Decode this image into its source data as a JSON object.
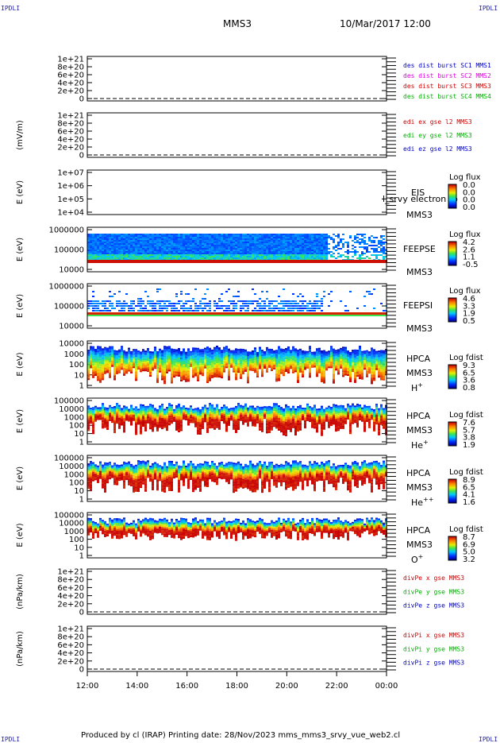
{
  "header": {
    "corner_tag": "IPDLI",
    "spacecraft": "MMS3",
    "datetime": "10/Mar/2017 12:00"
  },
  "footer": {
    "text": "Produced by cl (IRAP)   Printing date: 28/Nov/2023   mms_mms3_srvy_vue_web2.cl"
  },
  "colors": {
    "blue": "#0000c8",
    "magenta": "#e000e0",
    "red": "#d00000",
    "green": "#00b000",
    "dark_blue": "#000096"
  },
  "chart_data": [
    {
      "type": "line",
      "ylabel": "",
      "yticks": [
        "1e+21",
        "8e+20",
        "6e+20",
        "4e+20",
        "2e+20",
        "0"
      ],
      "legend": [
        {
          "text": "des dist burst SC1 MMS1",
          "color": "#0000c8"
        },
        {
          "text": "des dist burst SC2 MMS2",
          "color": "#e000e0"
        },
        {
          "text": "des dist burst SC3 MMS3",
          "color": "#d00000"
        },
        {
          "text": "des dist burst SC4 MMS4",
          "color": "#00b000"
        }
      ]
    },
    {
      "type": "line",
      "ylabel": "(mV/m)",
      "yticks": [
        "1e+21",
        "8e+20",
        "6e+20",
        "4e+20",
        "2e+20",
        "0"
      ],
      "legend": [
        {
          "text": "edi ex gse l2 MMS3",
          "color": "#d00000"
        },
        {
          "text": "edi ey gse l2 MMS3",
          "color": "#00b000"
        },
        {
          "text": "edi ez gse l2 MMS3",
          "color": "#0000c8"
        }
      ]
    },
    {
      "type": "heatmap",
      "ylabel": "E (eV)",
      "yticks": [
        "1e+07",
        "1e+06",
        "1e+05",
        "1e+04"
      ],
      "instrument": "EIS",
      "species": "MMS3",
      "overlay_text": "l_srvy electron to",
      "colorbar_title": "Log flux",
      "colorbar_ticks": [
        "0.0",
        "0.0",
        "0.0",
        "0.0"
      ]
    },
    {
      "type": "heatmap",
      "ylabel": "E (eV)",
      "yticks": [
        "1000000",
        "100000",
        "10000"
      ],
      "instrument": "FEEPSE",
      "species": "MMS3",
      "colorbar_title": "Log flux",
      "colorbar_ticks": [
        "4.2",
        "2.6",
        "1.1",
        "-0.5"
      ]
    },
    {
      "type": "heatmap",
      "ylabel": "E (eV)",
      "yticks": [
        "1000000",
        "100000",
        "10000"
      ],
      "instrument": "FEEPSI",
      "species": "MMS3",
      "colorbar_title": "Log flux",
      "colorbar_ticks": [
        "4.6",
        "3.3",
        "1.9",
        "0.5"
      ]
    },
    {
      "type": "heatmap",
      "ylabel": "E (eV)",
      "yticks": [
        "10000",
        "1000",
        "100",
        "10",
        "1"
      ],
      "instrument": "HPCA",
      "species": "MMS3",
      "ion": "H",
      "ion_charge": "+",
      "colorbar_title": "Log fdist",
      "colorbar_ticks": [
        "9.3",
        "6.5",
        "3.6",
        "0.8"
      ]
    },
    {
      "type": "heatmap",
      "ylabel": "E (eV)",
      "yticks": [
        "100000",
        "10000",
        "1000",
        "100",
        "10",
        "1"
      ],
      "instrument": "HPCA",
      "species": "MMS3",
      "ion": "He",
      "ion_charge": "+",
      "colorbar_title": "Log fdist",
      "colorbar_ticks": [
        "7.6",
        "5.7",
        "3.8",
        "1.9"
      ]
    },
    {
      "type": "heatmap",
      "ylabel": "E (eV)",
      "yticks": [
        "100000",
        "10000",
        "1000",
        "100",
        "10",
        "1"
      ],
      "instrument": "HPCA",
      "species": "MMS3",
      "ion": "He",
      "ion_charge": "++",
      "colorbar_title": "Log fdist",
      "colorbar_ticks": [
        "8.9",
        "6.5",
        "4.1",
        "1.6"
      ]
    },
    {
      "type": "heatmap",
      "ylabel": "E (eV)",
      "yticks": [
        "100000",
        "10000",
        "1000",
        "100",
        "10",
        "1"
      ],
      "instrument": "HPCA",
      "species": "MMS3",
      "ion": "O",
      "ion_charge": "+",
      "colorbar_title": "Log fdist",
      "colorbar_ticks": [
        "8.7",
        "6.9",
        "5.0",
        "3.2"
      ]
    },
    {
      "type": "line",
      "ylabel": "(nPa/km)",
      "yticks": [
        "1e+21",
        "8e+20",
        "6e+20",
        "4e+20",
        "2e+20",
        "0"
      ],
      "legend": [
        {
          "text": "divPe x gse MMS3",
          "color": "#d00000"
        },
        {
          "text": "divPe y gse MMS3",
          "color": "#00b000"
        },
        {
          "text": "divPe z gse MMS3",
          "color": "#0000c8"
        }
      ]
    },
    {
      "type": "line",
      "ylabel": "(nPa/km)",
      "yticks": [
        "1e+21",
        "8e+20",
        "6e+20",
        "4e+20",
        "2e+20",
        "0"
      ],
      "legend": [
        {
          "text": "divPi x gse MMS3",
          "color": "#d00000"
        },
        {
          "text": "divPi y gse MMS3",
          "color": "#00b000"
        },
        {
          "text": "divPi z gse MMS3",
          "color": "#0000c8"
        }
      ]
    }
  ],
  "x_axis": {
    "ticks": [
      "12:00",
      "14:00",
      "16:00",
      "18:00",
      "20:00",
      "22:00",
      "00:00"
    ]
  }
}
